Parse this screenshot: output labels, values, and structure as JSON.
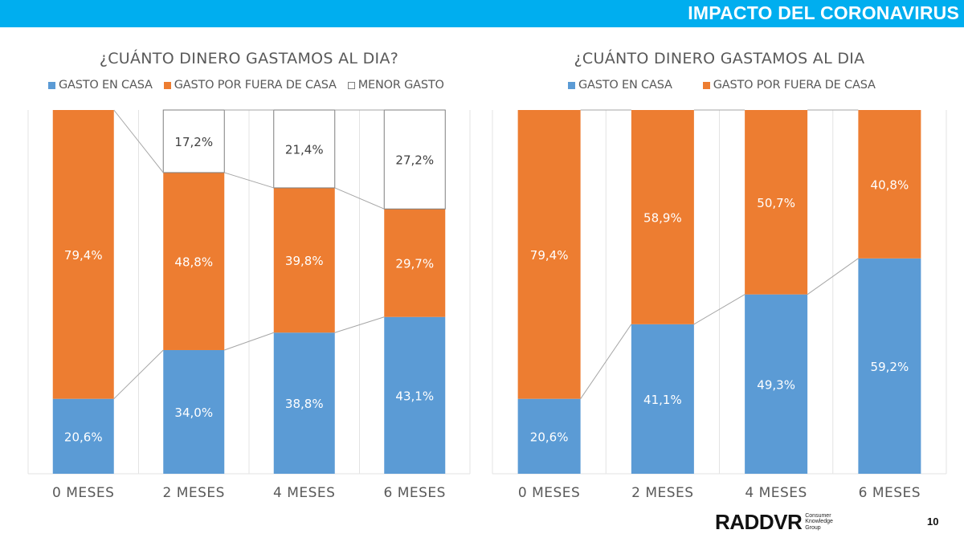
{
  "header": {
    "title": "IMPACTO DEL CORONAVIRUS",
    "bar_color": "#00AEEF"
  },
  "colors": {
    "gasto_en_casa": "#5B9BD5",
    "gasto_fuera_casa": "#ED7D31",
    "menor_gasto": "#FFFFFF",
    "connector_line": "#A6A6A6",
    "gridline": "#E3E3E3"
  },
  "chart_data": [
    {
      "type": "bar",
      "stacked": true,
      "title": "¿CUÁNTO DINERO GASTAMOS AL DIA?",
      "legend": [
        "GASTO EN CASA",
        "GASTO POR FUERA DE CASA",
        "MENOR GASTO"
      ],
      "legend_position": "top",
      "categories": [
        "0 MESES",
        "2 MESES",
        "4 MESES",
        "6 MESES"
      ],
      "series": [
        {
          "name": "GASTO EN CASA",
          "values": [
            20.6,
            34.0,
            38.8,
            43.1
          ],
          "labels": [
            "20,6%",
            "34,0%",
            "38,8%",
            "43,1%"
          ]
        },
        {
          "name": "GASTO POR FUERA DE CASA",
          "values": [
            79.4,
            48.8,
            39.8,
            29.7
          ],
          "labels": [
            "79,4%",
            "48,8%",
            "39,8%",
            "29,7%"
          ]
        },
        {
          "name": "MENOR GASTO",
          "values": [
            0,
            17.2,
            21.4,
            27.2
          ],
          "labels": [
            "",
            "17,2%",
            "21,4%",
            "27,2%"
          ]
        }
      ],
      "ylim": [
        0,
        100
      ],
      "series_lines": true,
      "grid": "vertical"
    },
    {
      "type": "bar",
      "stacked": true,
      "title": "¿CUÁNTO DINERO GASTAMOS AL DIA",
      "legend": [
        "GASTO EN CASA",
        "GASTO POR FUERA DE CASA"
      ],
      "legend_position": "top",
      "categories": [
        "0 MESES",
        "2 MESES",
        "4 MESES",
        "6 MESES"
      ],
      "series": [
        {
          "name": "GASTO EN CASA",
          "values": [
            20.6,
            41.1,
            49.3,
            59.2
          ],
          "labels": [
            "20,6%",
            "41,1%",
            "49,3%",
            "59,2%"
          ]
        },
        {
          "name": "GASTO POR FUERA DE CASA",
          "values": [
            79.4,
            58.9,
            50.7,
            40.8
          ],
          "labels": [
            "79,4%",
            "58,9%",
            "50,7%",
            "40,8%"
          ]
        }
      ],
      "ylim": [
        0,
        100
      ],
      "series_lines": true,
      "grid": "vertical"
    }
  ],
  "footer": {
    "logo_text": "RADDVR",
    "logo_sub": [
      "Consumer",
      "Knowledge",
      "Group"
    ],
    "page_number": "10"
  }
}
